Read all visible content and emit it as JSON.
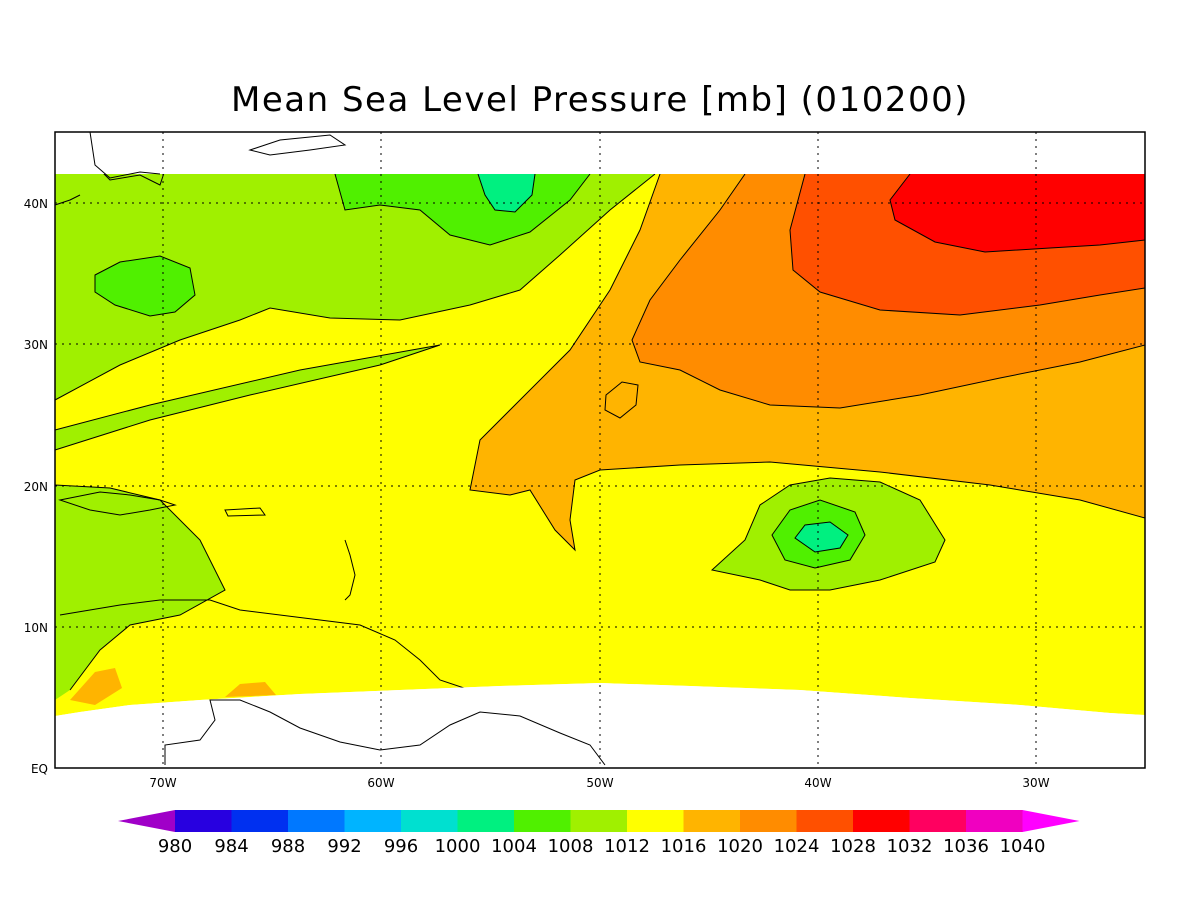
{
  "title": "Mean Sea Level Pressure [mb] (010200)",
  "lon_labels": [
    "70W",
    "60W",
    "50W",
    "40W",
    "30W"
  ],
  "lat_labels": [
    "40N",
    "30N",
    "20N",
    "10N",
    "EQ"
  ],
  "colorbar": {
    "labels": [
      "980",
      "984",
      "988",
      "992",
      "996",
      "1000",
      "1004",
      "1008",
      "1012",
      "1016",
      "1020",
      "1024",
      "1028",
      "1032",
      "1036",
      "1040"
    ],
    "colors": [
      "#a000c8",
      "#2800e0",
      "#0030f0",
      "#0078ff",
      "#00b4ff",
      "#00e0d0",
      "#00f080",
      "#50f000",
      "#a0f000",
      "#ffff00",
      "#ffb400",
      "#ff8c00",
      "#ff5000",
      "#ff0000",
      "#ff0060",
      "#f000c0",
      "#ff00ff"
    ]
  },
  "fills": {
    "low": "#a0f000",
    "lower": "#50f000",
    "lowest": "#00f080",
    "base": "#ffff00",
    "mid": "#ffb400",
    "high": "#ff8c00",
    "higher": "#ff5000",
    "highest": "#ff0000"
  }
}
